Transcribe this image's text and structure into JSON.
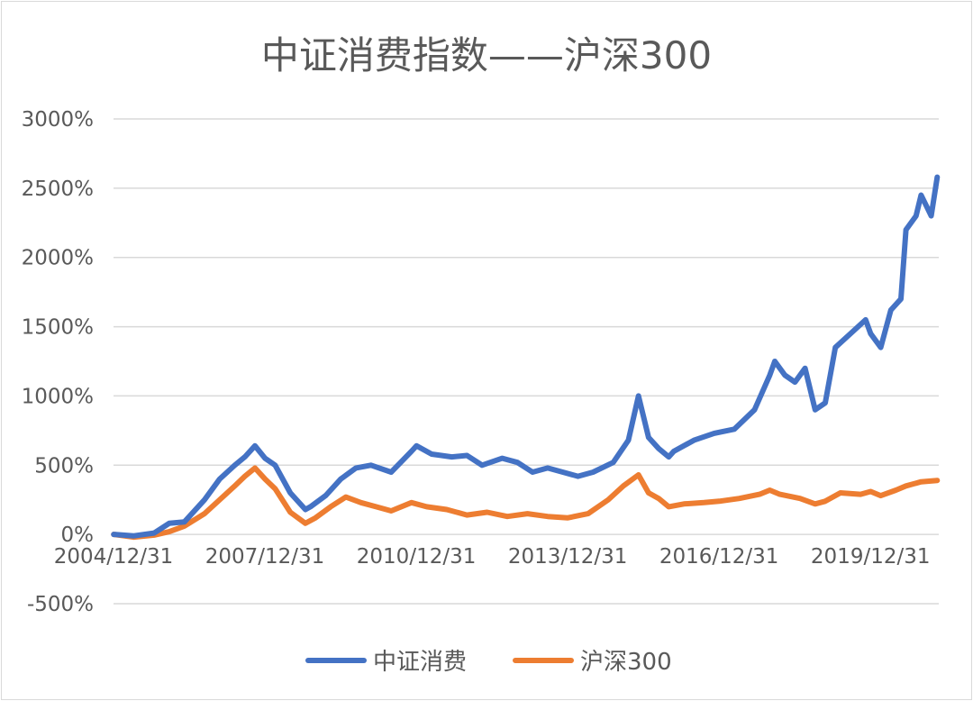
{
  "chart_data": {
    "type": "line",
    "title": "中证消费指数——沪深300",
    "xlabel": "",
    "ylabel": "",
    "ylim": [
      -500,
      3000
    ],
    "yticks": [
      3000,
      2500,
      2000,
      1500,
      1000,
      500,
      0,
      -500
    ],
    "ytick_labels": [
      "3000%",
      "2500%",
      "2000%",
      "1500%",
      "1000%",
      "500%",
      "0%",
      "-500%"
    ],
    "xlim": [
      2004.997,
      2021.35
    ],
    "xticks": [
      2004.997,
      2007.997,
      2010.997,
      2013.997,
      2016.997,
      2019.997
    ],
    "xtick_labels": [
      "2004/12/31",
      "2007/12/31",
      "2010/12/31",
      "2013/12/31",
      "2016/12/31",
      "2019/12/31"
    ],
    "grid": true,
    "legend": "bottom-center",
    "series": [
      {
        "name": "中证消费",
        "color": "#4472c4",
        "x": [
          2005.0,
          2005.4,
          2005.8,
          2006.1,
          2006.4,
          2006.8,
          2007.1,
          2007.4,
          2007.6,
          2007.8,
          2008.0,
          2008.2,
          2008.5,
          2008.8,
          2008.9,
          2009.2,
          2009.5,
          2009.8,
          2010.1,
          2010.5,
          2010.9,
          2011.0,
          2011.3,
          2011.7,
          2012.0,
          2012.3,
          2012.7,
          2013.0,
          2013.3,
          2013.6,
          2013.9,
          2014.2,
          2014.5,
          2014.9,
          2015.2,
          2015.4,
          2015.6,
          2015.8,
          2016.0,
          2016.1,
          2016.5,
          2016.9,
          2017.3,
          2017.7,
          2018.0,
          2018.1,
          2018.3,
          2018.5,
          2018.7,
          2018.9,
          2019.1,
          2019.3,
          2019.6,
          2019.9,
          2020.0,
          2020.2,
          2020.4,
          2020.6,
          2020.7,
          2020.9,
          2021.0,
          2021.2,
          2021.32
        ],
        "values": [
          0,
          -10,
          10,
          80,
          90,
          250,
          400,
          500,
          560,
          640,
          550,
          500,
          300,
          180,
          200,
          280,
          400,
          480,
          500,
          450,
          600,
          640,
          580,
          560,
          570,
          500,
          550,
          520,
          450,
          480,
          450,
          420,
          450,
          520,
          680,
          1000,
          700,
          620,
          560,
          600,
          680,
          730,
          760,
          900,
          1150,
          1250,
          1150,
          1100,
          1200,
          900,
          950,
          1350,
          1450,
          1550,
          1450,
          1350,
          1620,
          1700,
          2200,
          2300,
          2450,
          2300,
          2580
        ]
      },
      {
        "name": "沪深300",
        "color": "#ed7d31",
        "x": [
          2005.0,
          2005.4,
          2005.8,
          2006.1,
          2006.4,
          2006.8,
          2007.1,
          2007.4,
          2007.6,
          2007.8,
          2008.0,
          2008.2,
          2008.5,
          2008.8,
          2009.0,
          2009.3,
          2009.6,
          2009.9,
          2010.2,
          2010.5,
          2010.9,
          2011.2,
          2011.6,
          2012.0,
          2012.4,
          2012.8,
          2013.2,
          2013.6,
          2014.0,
          2014.4,
          2014.8,
          2015.1,
          2015.4,
          2015.6,
          2015.8,
          2016.0,
          2016.3,
          2016.7,
          2017.0,
          2017.4,
          2017.8,
          2018.0,
          2018.2,
          2018.6,
          2018.9,
          2019.1,
          2019.4,
          2019.8,
          2020.0,
          2020.2,
          2020.5,
          2020.7,
          2021.0,
          2021.32
        ],
        "values": [
          0,
          -20,
          -5,
          20,
          60,
          150,
          250,
          350,
          420,
          480,
          400,
          330,
          160,
          80,
          120,
          200,
          270,
          230,
          200,
          170,
          230,
          200,
          180,
          140,
          160,
          130,
          150,
          130,
          120,
          150,
          250,
          350,
          430,
          300,
          260,
          200,
          220,
          230,
          240,
          260,
          290,
          320,
          290,
          260,
          220,
          240,
          300,
          290,
          310,
          280,
          320,
          350,
          380,
          390
        ]
      }
    ]
  }
}
